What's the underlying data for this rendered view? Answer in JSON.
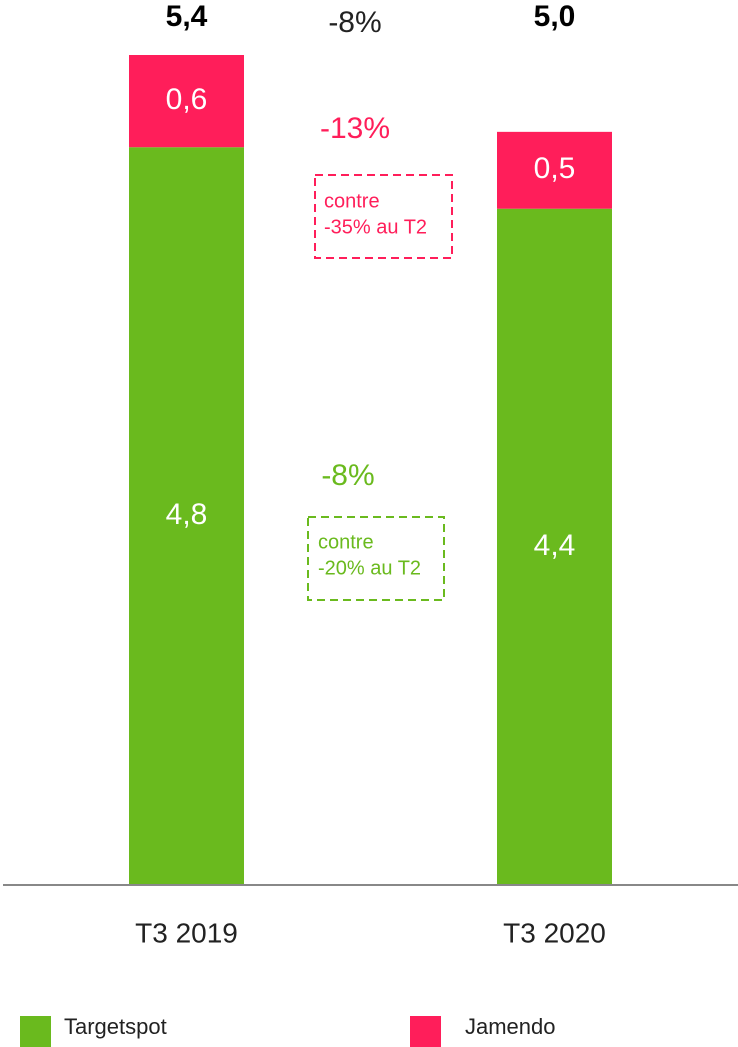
{
  "chart_data": {
    "type": "bar",
    "stacked": true,
    "categories": [
      "T3 2019",
      "T3 2020"
    ],
    "series": [
      {
        "name": "Targetspot",
        "color": "#6aba1e",
        "values": [
          4.8,
          4.4
        ],
        "value_labels": [
          "4,8",
          "4,4"
        ]
      },
      {
        "name": "Jamendo",
        "color": "#ff1e5a",
        "values": [
          0.6,
          0.5
        ],
        "value_labels": [
          "0,6",
          "0,5"
        ]
      }
    ],
    "totals": {
      "values": [
        5.4,
        5.0
      ],
      "value_labels": [
        "5,4",
        "5,0"
      ]
    },
    "annotations": [
      {
        "text": "-8%",
        "color": "#222222"
      },
      {
        "text": "-13%",
        "color": "#ff1e5a"
      },
      {
        "lines": [
          "contre",
          "-35% au T2"
        ],
        "color": "#ff1e5a",
        "boxed": true
      },
      {
        "text": "-8%",
        "color": "#6aba1e"
      },
      {
        "lines": [
          "contre",
          "-20% au T2"
        ],
        "color": "#6aba1e",
        "boxed": true
      }
    ]
  }
}
